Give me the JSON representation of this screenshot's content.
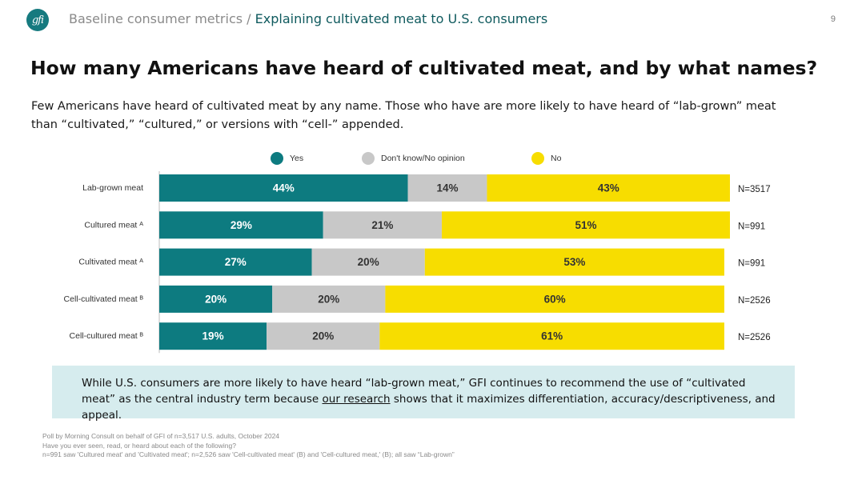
{
  "header": {
    "logo_text": "gfi",
    "breadcrumb_section": "Baseline consumer metrics /",
    "breadcrumb_page": "Explaining cultivated meat to U.S. consumers",
    "page_number": "9"
  },
  "title": "How many Americans have heard of cultivated meat, and by what names?",
  "subtitle": "Few Americans have heard of cultivated meat by any name. Those who have are more likely to have heard of “lab-grown” meat than “cultivated,” “cultured,” or versions with “cell-” appended.",
  "colors": {
    "yes": "#0d7b80",
    "dont_know": "#c8c8c8",
    "no": "#f7dd00"
  },
  "chart_data": {
    "type": "bar",
    "orientation": "horizontal",
    "stacked": true,
    "legend_position": "top",
    "categories": [
      "Lab-grown meat",
      "Cultured meat ᴬ",
      "Cultivated meat ᴬ",
      "Cell-cultivated meat ᴮ",
      "Cell-cultured meat ᴮ"
    ],
    "series": [
      {
        "name": "Yes",
        "values": [
          44,
          29,
          27,
          20,
          19
        ]
      },
      {
        "name": "Don't know/No opinion",
        "values": [
          14,
          21,
          20,
          20,
          20
        ]
      },
      {
        "name": "No",
        "values": [
          43,
          51,
          53,
          60,
          61
        ]
      }
    ],
    "value_suffix": "%",
    "sample_sizes": [
      "N=3517",
      "N=991",
      "N=991",
      "N=2526",
      "N=2526"
    ],
    "xlim": [
      0,
      101
    ]
  },
  "callout": {
    "before": "While U.S. consumers are more likely to have heard “lab-grown meat,” GFI continues to recommend the use of “cultivated meat” as the central industry term because ",
    "link": "our research",
    "after": " shows that it maximizes differentiation, accuracy/descriptiveness, and appeal."
  },
  "footnotes": [
    "Poll by Morning Consult on behalf of GFI of n=3,517 U.S. adults, October 2024",
    "Have you ever seen, read, or heard about each of the following?",
    "n=991 saw 'Cultured meat' and 'Cultivated meat'; n=2,526 saw 'Cell-cultivated meat' (B) and 'Cell-cultured meat,' (B); all saw “Lab-grown”"
  ]
}
